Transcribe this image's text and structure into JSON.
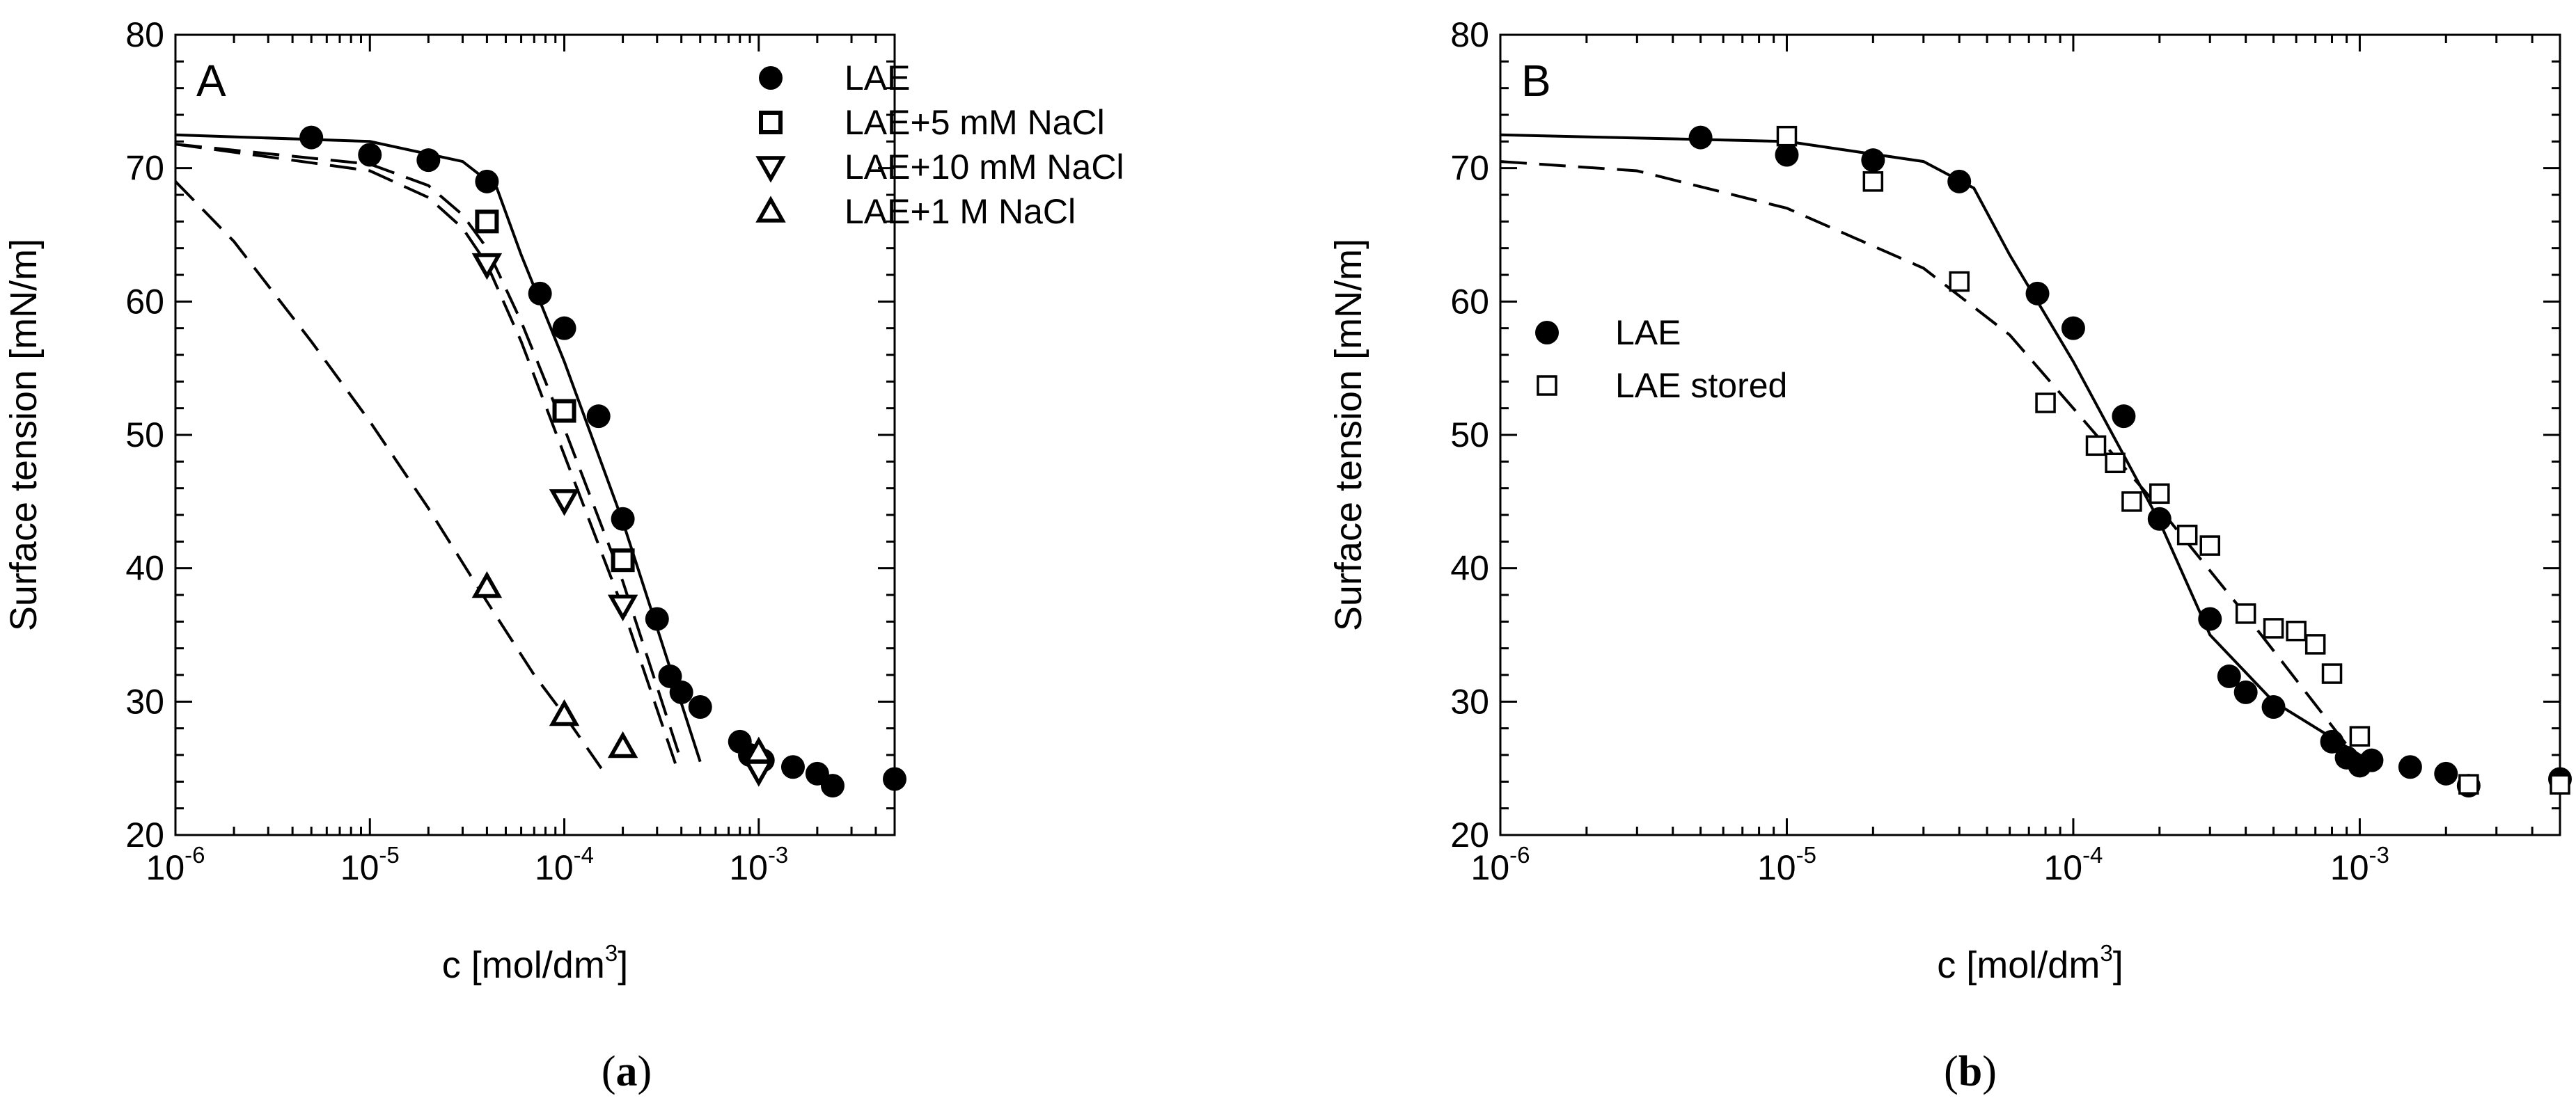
{
  "chart_data": [
    {
      "type": "scatter",
      "panel_letter": "A",
      "caption_letter": "a",
      "xscale": "log",
      "xlim": [
        1e-06,
        0.005
      ],
      "ylim": [
        20,
        80
      ],
      "xlabel": "c [mol/dm",
      "xlabel_sup": "3",
      "xlabel_end": "]",
      "ylabel": "Surface tension [mN/m]",
      "xticks": [
        {
          "base": "10",
          "exp": "-6",
          "value": 1e-06
        },
        {
          "base": "10",
          "exp": "-5",
          "value": 1e-05
        },
        {
          "base": "10",
          "exp": "-4",
          "value": 0.0001
        },
        {
          "base": "10",
          "exp": "-3",
          "value": 0.001
        }
      ],
      "yticks": [
        "20",
        "30",
        "40",
        "50",
        "60",
        "70",
        "80"
      ],
      "series": [
        {
          "name": "LAE",
          "marker": "filled-circle",
          "x": [
            5e-06,
            1e-05,
            2e-05,
            4e-05,
            7.5e-05,
            0.0001,
            0.00015,
            0.0002,
            0.0003,
            0.00035,
            0.0004,
            0.0005,
            0.0008,
            0.0009,
            0.00105,
            0.0015,
            0.002,
            0.0024,
            0.005
          ],
          "y": [
            72.3,
            71.0,
            70.6,
            69.0,
            60.6,
            58.0,
            51.4,
            43.7,
            36.2,
            31.9,
            30.7,
            29.6,
            27.0,
            26.0,
            25.6,
            25.1,
            24.6,
            23.7,
            24.2
          ]
        },
        {
          "name": "LAE+5 mM NaCl",
          "marker": "open-square",
          "x": [
            4e-05,
            0.0001,
            0.0002
          ],
          "y": [
            66.0,
            51.8,
            40.6
          ]
        },
        {
          "name": "LAE+10 mM NaCl",
          "marker": "open-triangle-down",
          "x": [
            4e-05,
            0.0001,
            0.0002,
            0.001
          ],
          "y": [
            62.8,
            45.1,
            37.2,
            24.8
          ]
        },
        {
          "name": "LAE+1 M NaCl",
          "marker": "open-triangle-up",
          "x": [
            4e-05,
            0.0001,
            0.0002,
            0.001
          ],
          "y": [
            38.6,
            29.0,
            26.6,
            26.2
          ]
        }
      ],
      "fits": [
        {
          "style": "solid",
          "x": [
            1e-06,
            1e-05,
            3e-05,
            4.5e-05,
            6e-05,
            0.0001,
            0.0002,
            0.0005
          ],
          "y": [
            72.5,
            72.0,
            70.5,
            68.5,
            63.5,
            55.5,
            43.5,
            25.5
          ]
        },
        {
          "style": "dashed",
          "x": [
            1e-06,
            1e-05,
            2e-05,
            3e-05,
            4e-05,
            6e-05,
            0.0001,
            0.0002,
            0.0004
          ],
          "y": [
            71.8,
            70.3,
            68.7,
            66.5,
            64.0,
            58.5,
            50.5,
            39.0,
            25.5
          ]
        },
        {
          "style": "dashed",
          "x": [
            1e-06,
            1e-05,
            2e-05,
            3e-05,
            4e-05,
            6e-05,
            0.0001,
            0.0002,
            0.00038
          ],
          "y": [
            71.8,
            69.8,
            67.8,
            65.5,
            62.8,
            57.0,
            48.5,
            37.0,
            25.0
          ]
        },
        {
          "style": "dashed",
          "x": [
            1e-06,
            2e-06,
            5e-06,
            1e-05,
            2e-05,
            4e-05,
            7e-05,
            0.0001,
            0.000155
          ],
          "y": [
            69.0,
            64.5,
            57.0,
            51.0,
            44.5,
            37.5,
            32.0,
            29.0,
            25.0
          ]
        }
      ]
    },
    {
      "type": "scatter",
      "panel_letter": "B",
      "caption_letter": "b",
      "xscale": "log",
      "xlim": [
        1e-06,
        0.005
      ],
      "ylim": [
        20,
        80
      ],
      "xlabel": "c [mol/dm",
      "xlabel_sup": "3",
      "xlabel_end": "]",
      "ylabel": "Surface tension [mN/m]",
      "xticks": [
        {
          "base": "10",
          "exp": "-6",
          "value": 1e-06
        },
        {
          "base": "10",
          "exp": "-5",
          "value": 1e-05
        },
        {
          "base": "10",
          "exp": "-4",
          "value": 0.0001
        },
        {
          "base": "10",
          "exp": "-3",
          "value": 0.001
        }
      ],
      "yticks": [
        "20",
        "30",
        "40",
        "50",
        "60",
        "70",
        "80"
      ],
      "series": [
        {
          "name": "LAE",
          "marker": "filled-circle",
          "x": [
            5e-06,
            1e-05,
            2e-05,
            4e-05,
            7.5e-05,
            0.0001,
            0.00015,
            0.0002,
            0.0003,
            0.00035,
            0.0004,
            0.0005,
            0.0008,
            0.0009,
            0.001,
            0.0011,
            0.0015,
            0.002,
            0.0024,
            0.005
          ],
          "y": [
            72.3,
            71.0,
            70.6,
            69.0,
            60.6,
            58.0,
            51.4,
            43.7,
            36.2,
            31.9,
            30.7,
            29.6,
            27.0,
            25.8,
            25.2,
            25.6,
            25.1,
            24.6,
            23.7,
            24.2
          ]
        },
        {
          "name": "LAE stored",
          "marker": "open-square",
          "x": [
            1e-05,
            2e-05,
            4e-05,
            8e-05,
            0.00012,
            0.00014,
            0.00016,
            0.0002,
            0.00025,
            0.0003,
            0.0004,
            0.0005,
            0.0006,
            0.0007,
            0.0008,
            0.001,
            0.0024,
            0.005
          ],
          "y": [
            72.4,
            69.0,
            61.5,
            52.4,
            49.2,
            47.9,
            45.0,
            45.6,
            42.5,
            41.7,
            36.6,
            35.5,
            35.3,
            34.3,
            32.1,
            27.4,
            23.8,
            23.8
          ]
        }
      ],
      "fits": [
        {
          "style": "solid",
          "x": [
            1e-06,
            1e-05,
            3e-05,
            4.5e-05,
            6e-05,
            0.0001,
            0.0002,
            0.0003,
            0.0005,
            0.001
          ],
          "y": [
            72.5,
            72.0,
            70.5,
            68.5,
            63.5,
            55.5,
            43.5,
            35.0,
            30.0,
            26.0
          ]
        },
        {
          "style": "dashed",
          "x": [
            1e-06,
            3e-06,
            1e-05,
            3e-05,
            6e-05,
            0.0001,
            0.0002,
            0.0004,
            0.001
          ],
          "y": [
            70.5,
            69.8,
            67.0,
            62.5,
            57.5,
            52.0,
            44.5,
            36.5,
            25.5
          ]
        }
      ]
    }
  ]
}
